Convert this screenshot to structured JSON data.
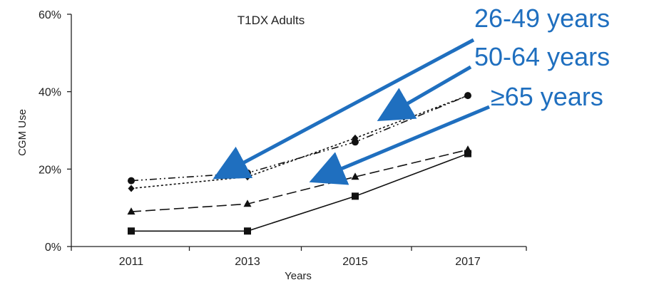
{
  "chart_data": {
    "type": "line",
    "title": "T1DX Adults",
    "xlabel": "Years",
    "ylabel": "CGM Use",
    "categories": [
      "2011",
      "2013",
      "2015",
      "2017"
    ],
    "y_ticks": [
      "0%",
      "20%",
      "40%",
      "60%"
    ],
    "ylim": [
      0,
      60
    ],
    "grid": false,
    "series": [
      {
        "marker": "circle",
        "dash": "dash-dot-dot",
        "values": [
          17,
          19,
          27,
          39
        ]
      },
      {
        "marker": "diamond",
        "dash": "dotted",
        "values": [
          15,
          18,
          28,
          39
        ]
      },
      {
        "marker": "triangle",
        "dash": "dashed",
        "values": [
          9,
          11,
          18,
          25
        ]
      },
      {
        "marker": "square",
        "dash": "solid",
        "values": [
          4,
          4,
          13,
          24
        ]
      }
    ],
    "annotations": [
      "26-49 years",
      "50-64 years",
      "≥65 years"
    ],
    "annotation_color": "#1f6fbf"
  }
}
